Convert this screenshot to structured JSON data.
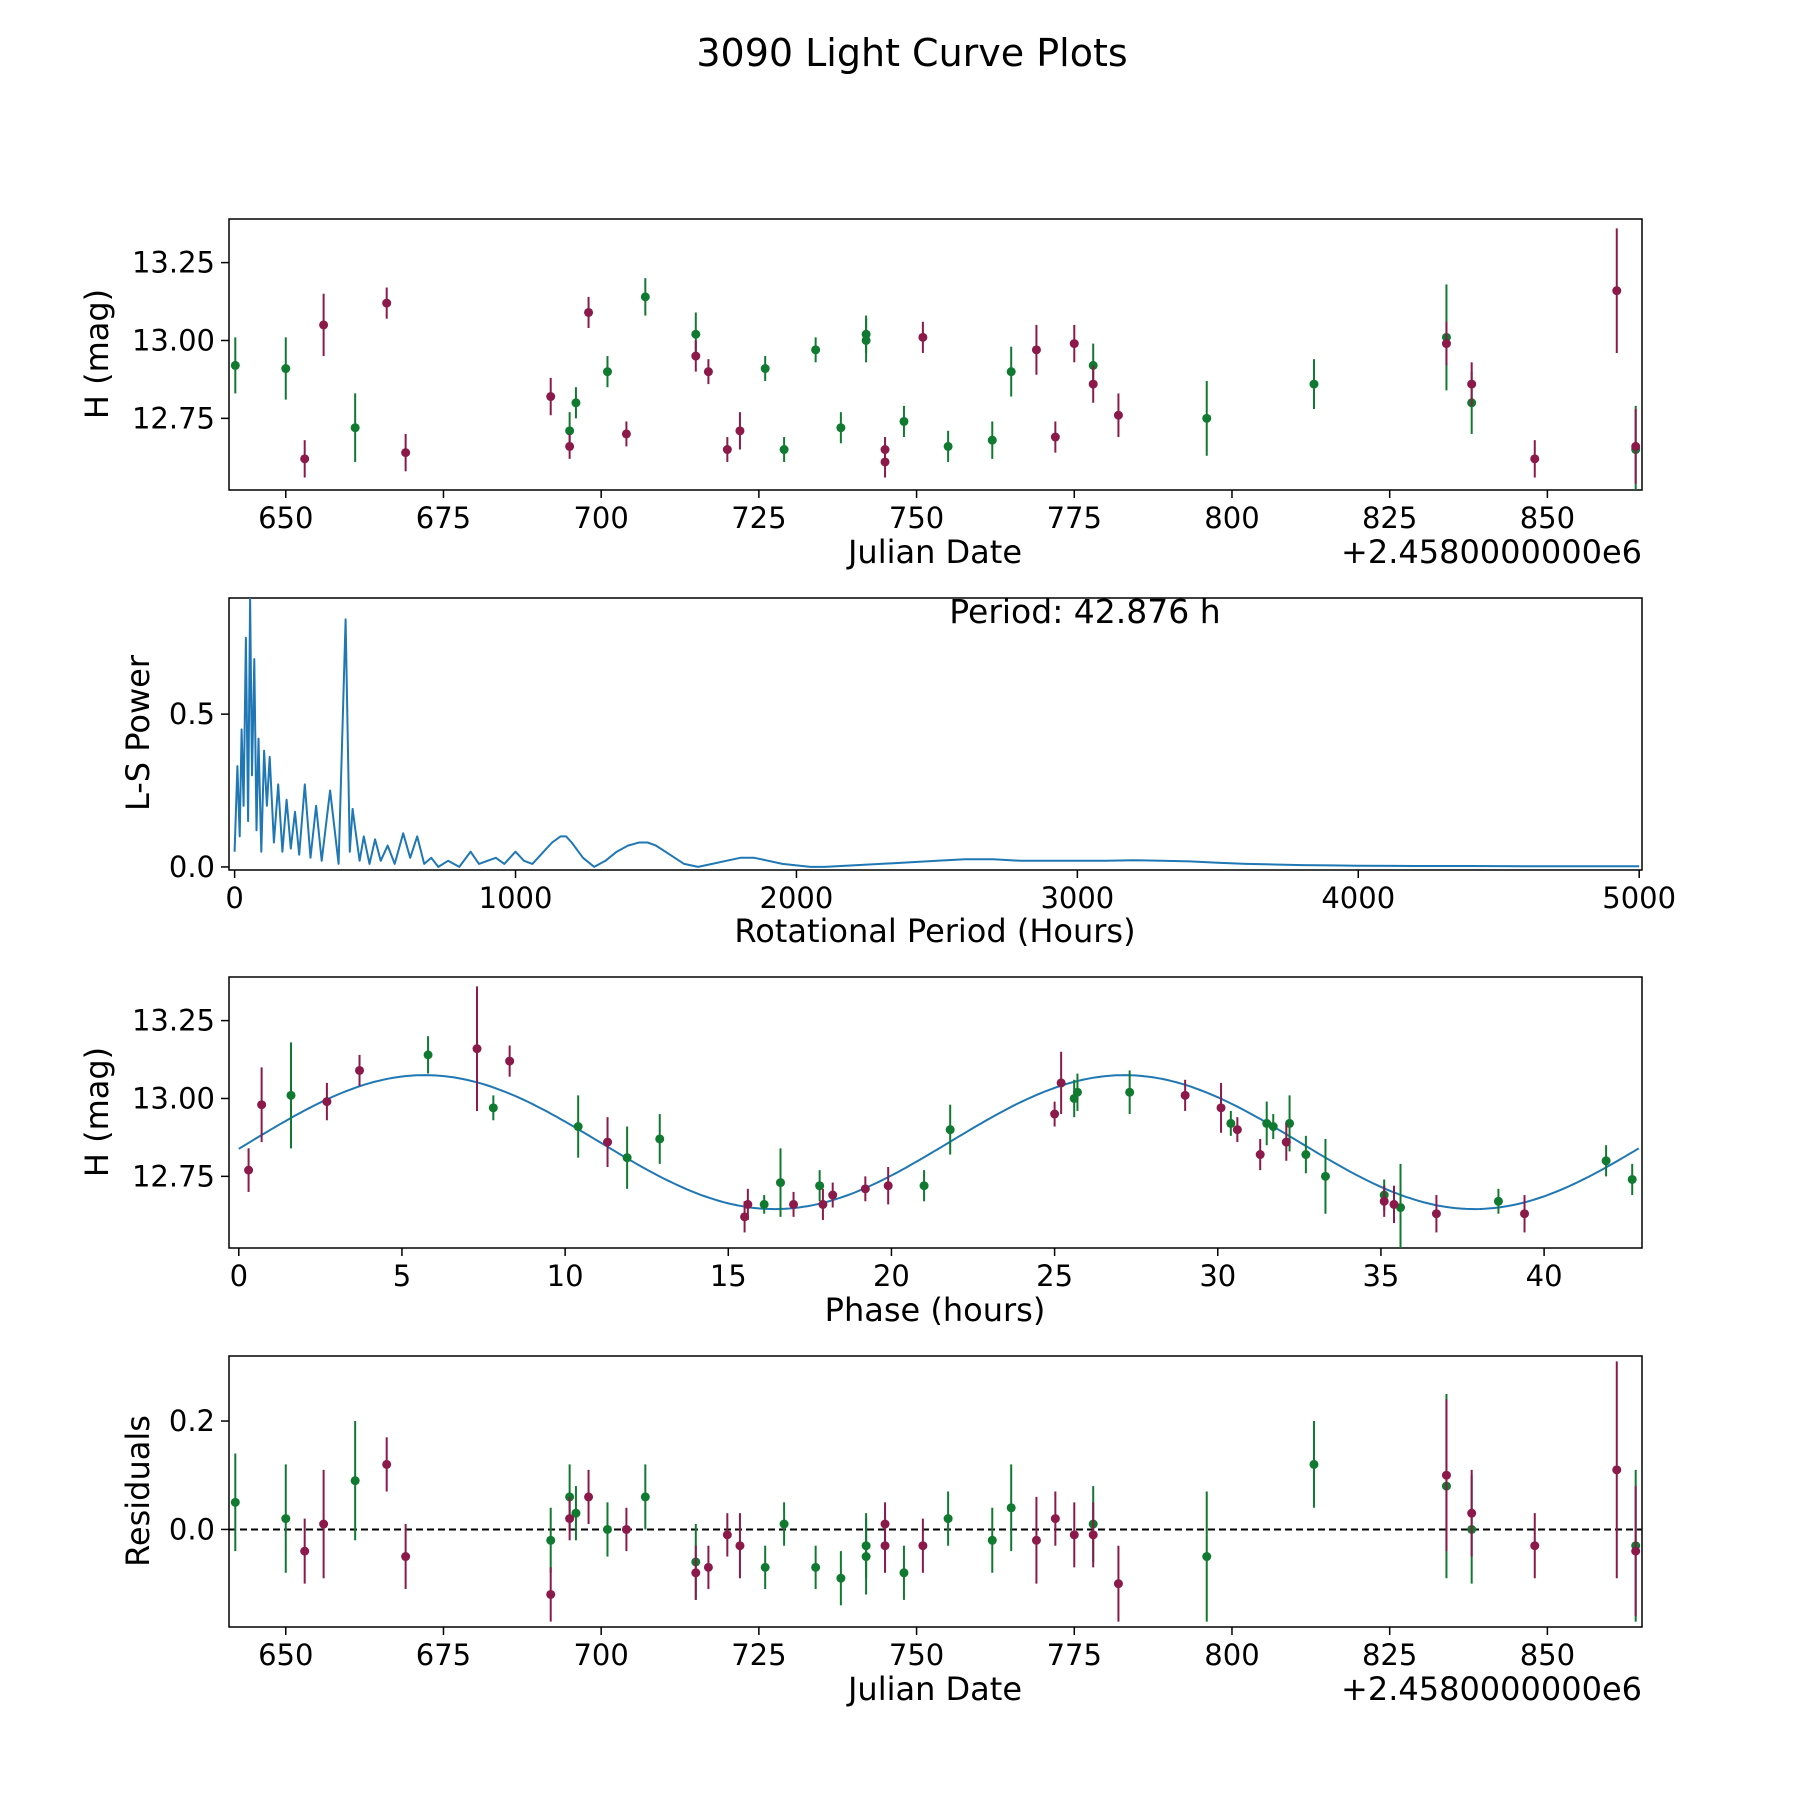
{
  "figure_title": "3090 Light Curve Plots",
  "colors": {
    "green": "#107A30",
    "magenta": "#8B1A4A",
    "line": "#1f77b4",
    "axis": "#000000"
  },
  "chart_data": [
    {
      "id": "lc",
      "type": "scatter",
      "title": "",
      "xlabel": "Julian Date",
      "ylabel": "H (mag)",
      "offset_label": "+2.4580000000e6",
      "xlim": [
        641,
        865
      ],
      "ylim": [
        12.52,
        13.39
      ],
      "xticks": [
        650,
        675,
        700,
        725,
        750,
        775,
        800,
        825,
        850
      ],
      "yticks": [
        12.75,
        13.0,
        13.25
      ],
      "ytick_labels": [
        "12.75",
        "13.00",
        "13.25"
      ],
      "series": [
        {
          "name": "green",
          "color": "green",
          "x": [
            642,
            650,
            661,
            695,
            696,
            701,
            707,
            715,
            726,
            729,
            734,
            738,
            742,
            742,
            748,
            755,
            762,
            765,
            778,
            796,
            813,
            834,
            838,
            864
          ],
          "y": [
            12.92,
            12.91,
            12.72,
            12.71,
            12.8,
            12.9,
            13.14,
            13.02,
            12.91,
            12.65,
            12.97,
            12.72,
            13.0,
            13.02,
            12.74,
            12.66,
            12.68,
            12.9,
            12.92,
            12.75,
            12.86,
            13.01,
            12.8,
            12.65
          ],
          "err": [
            0.09,
            0.1,
            0.11,
            0.06,
            0.05,
            0.05,
            0.06,
            0.07,
            0.04,
            0.04,
            0.04,
            0.05,
            0.07,
            0.06,
            0.05,
            0.05,
            0.06,
            0.08,
            0.07,
            0.12,
            0.08,
            0.17,
            0.1,
            0.14
          ]
        },
        {
          "name": "magenta",
          "color": "magenta",
          "x": [
            653,
            656,
            666,
            669,
            692,
            695,
            698,
            704,
            715,
            717,
            720,
            722,
            745,
            745,
            751,
            769,
            772,
            775,
            778,
            782,
            834,
            838,
            848,
            861,
            864
          ],
          "y": [
            12.62,
            13.05,
            13.12,
            12.64,
            12.82,
            12.66,
            13.09,
            12.7,
            12.95,
            12.9,
            12.65,
            12.71,
            12.65,
            12.61,
            13.01,
            12.97,
            12.69,
            12.99,
            12.86,
            12.76,
            12.99,
            12.86,
            12.62,
            13.16,
            12.66
          ],
          "err": [
            0.06,
            0.1,
            0.05,
            0.06,
            0.06,
            0.04,
            0.05,
            0.04,
            0.05,
            0.04,
            0.04,
            0.06,
            0.04,
            0.05,
            0.05,
            0.08,
            0.05,
            0.06,
            0.06,
            0.07,
            0.07,
            0.07,
            0.06,
            0.2,
            0.12
          ]
        }
      ]
    },
    {
      "id": "ls",
      "type": "line",
      "title": "",
      "xlabel": "Rotational Period (Hours)",
      "ylabel": "L-S Power",
      "annotation": "Period: 42.876 h",
      "xlim": [
        -20,
        5010
      ],
      "ylim": [
        -0.01,
        0.88
      ],
      "xticks": [
        0,
        1000,
        2000,
        3000,
        4000,
        5000
      ],
      "yticks": [
        0.0,
        0.5
      ],
      "ytick_labels": [
        "0.0",
        "0.5"
      ],
      "x": [
        0,
        10,
        18,
        25,
        32,
        40,
        48,
        55,
        62,
        70,
        78,
        85,
        95,
        105,
        115,
        125,
        140,
        155,
        170,
        185,
        200,
        215,
        230,
        250,
        270,
        290,
        310,
        340,
        370,
        395,
        410,
        420,
        430,
        445,
        460,
        480,
        500,
        520,
        545,
        570,
        600,
        625,
        650,
        675,
        700,
        725,
        760,
        800,
        840,
        870,
        900,
        930,
        960,
        1000,
        1030,
        1060,
        1100,
        1130,
        1160,
        1180,
        1200,
        1240,
        1280,
        1320,
        1360,
        1400,
        1440,
        1470,
        1500,
        1550,
        1600,
        1650,
        1700,
        1750,
        1800,
        1850,
        1900,
        1950,
        2000,
        2050,
        2100,
        2200,
        2300,
        2400,
        2500,
        2600,
        2700,
        2800,
        2900,
        3000,
        3100,
        3200,
        3300,
        3400,
        3500,
        3600,
        3700,
        3800,
        3900,
        4000,
        4200,
        4400,
        4600,
        4800,
        5000
      ],
      "y": [
        0.05,
        0.33,
        0.1,
        0.45,
        0.2,
        0.75,
        0.15,
        0.88,
        0.3,
        0.68,
        0.12,
        0.42,
        0.05,
        0.38,
        0.2,
        0.36,
        0.08,
        0.27,
        0.05,
        0.22,
        0.06,
        0.18,
        0.04,
        0.27,
        0.03,
        0.2,
        0.02,
        0.25,
        0.01,
        0.81,
        0.05,
        0.19,
        0.12,
        0.02,
        0.1,
        0.01,
        0.09,
        0.02,
        0.07,
        0.01,
        0.11,
        0.03,
        0.1,
        0.01,
        0.03,
        0.0,
        0.02,
        0.0,
        0.05,
        0.01,
        0.02,
        0.03,
        0.01,
        0.05,
        0.02,
        0.01,
        0.05,
        0.08,
        0.1,
        0.1,
        0.08,
        0.03,
        0.0,
        0.02,
        0.05,
        0.07,
        0.08,
        0.08,
        0.07,
        0.04,
        0.01,
        0.0,
        0.01,
        0.02,
        0.03,
        0.03,
        0.02,
        0.01,
        0.005,
        0.0,
        0.0,
        0.005,
        0.01,
        0.015,
        0.02,
        0.025,
        0.025,
        0.02,
        0.02,
        0.02,
        0.02,
        0.022,
        0.02,
        0.018,
        0.014,
        0.01,
        0.008,
        0.006,
        0.005,
        0.004,
        0.003,
        0.003,
        0.002,
        0.002,
        0.002
      ]
    },
    {
      "id": "phase",
      "type": "scatter",
      "title": "",
      "xlabel": "Phase (hours)",
      "ylabel": "H (mag)",
      "xlim": [
        -0.3,
        43.0
      ],
      "ylim": [
        12.52,
        13.39
      ],
      "xticks": [
        0,
        5,
        10,
        15,
        20,
        25,
        30,
        35,
        40
      ],
      "yticks": [
        12.75,
        13.0,
        13.25
      ],
      "ytick_labels": [
        "12.75",
        "13.00",
        "13.25"
      ],
      "fit": {
        "mean": 12.86,
        "amplitude": 0.215,
        "period": 21.44,
        "peak_phase": 5.7
      },
      "series": [
        {
          "name": "green",
          "color": "green",
          "x": [
            1.6,
            5.8,
            7.8,
            10.4,
            11.9,
            12.9,
            16.1,
            16.6,
            17.8,
            21.0,
            21.8,
            25.6,
            25.7,
            27.3,
            30.4,
            31.5,
            31.7,
            32.2,
            32.7,
            33.3,
            35.1,
            35.6,
            38.6,
            41.9,
            42.7
          ],
          "y": [
            13.01,
            13.14,
            12.97,
            12.91,
            12.81,
            12.87,
            12.66,
            12.73,
            12.72,
            12.72,
            12.9,
            13.0,
            13.02,
            13.02,
            12.92,
            12.92,
            12.91,
            12.92,
            12.82,
            12.75,
            12.69,
            12.65,
            12.67,
            12.8,
            12.74
          ],
          "err": [
            0.17,
            0.06,
            0.04,
            0.1,
            0.1,
            0.08,
            0.03,
            0.11,
            0.05,
            0.05,
            0.08,
            0.06,
            0.06,
            0.07,
            0.04,
            0.07,
            0.04,
            0.09,
            0.06,
            0.12,
            0.05,
            0.14,
            0.04,
            0.05,
            0.05
          ]
        },
        {
          "name": "magenta",
          "color": "magenta",
          "x": [
            0.3,
            0.7,
            2.7,
            3.7,
            7.3,
            8.3,
            11.3,
            15.5,
            15.6,
            17.0,
            17.9,
            18.2,
            19.2,
            19.9,
            25.0,
            25.2,
            29.0,
            30.1,
            30.6,
            31.3,
            32.1,
            35.1,
            35.4,
            36.7,
            39.4
          ],
          "y": [
            12.77,
            12.98,
            12.99,
            13.09,
            13.16,
            13.12,
            12.86,
            12.62,
            12.66,
            12.66,
            12.66,
            12.69,
            12.71,
            12.72,
            12.95,
            13.05,
            13.01,
            12.97,
            12.9,
            12.82,
            12.86,
            12.67,
            12.66,
            12.63,
            12.63
          ],
          "err": [
            0.07,
            0.12,
            0.06,
            0.05,
            0.2,
            0.05,
            0.08,
            0.05,
            0.05,
            0.04,
            0.05,
            0.04,
            0.04,
            0.06,
            0.04,
            0.1,
            0.05,
            0.08,
            0.04,
            0.05,
            0.06,
            0.05,
            0.06,
            0.06,
            0.06
          ]
        }
      ]
    },
    {
      "id": "res",
      "type": "scatter",
      "title": "",
      "xlabel": "Julian Date",
      "ylabel": "Residuals",
      "offset_label": "+2.4580000000e6",
      "xlim": [
        641,
        865
      ],
      "ylim": [
        -0.18,
        0.32
      ],
      "xticks": [
        650,
        675,
        700,
        725,
        750,
        775,
        800,
        825,
        850
      ],
      "yticks": [
        0.0,
        0.2
      ],
      "ytick_labels": [
        "0.0",
        "0.2"
      ],
      "hline": 0,
      "series": [
        {
          "name": "green",
          "color": "green",
          "x": [
            642,
            650,
            661,
            692,
            695,
            696,
            701,
            707,
            715,
            726,
            729,
            734,
            738,
            742,
            742,
            748,
            755,
            762,
            765,
            778,
            796,
            813,
            834,
            838,
            864
          ],
          "y": [
            0.05,
            0.02,
            0.09,
            -0.02,
            0.06,
            0.03,
            0.0,
            0.06,
            -0.06,
            -0.07,
            0.01,
            -0.07,
            -0.09,
            -0.03,
            -0.05,
            -0.08,
            0.02,
            -0.02,
            0.04,
            0.01,
            -0.05,
            0.12,
            0.08,
            0.0,
            -0.03
          ],
          "err": [
            0.09,
            0.1,
            0.11,
            0.06,
            0.06,
            0.05,
            0.05,
            0.06,
            0.07,
            0.04,
            0.04,
            0.04,
            0.05,
            0.06,
            0.07,
            0.05,
            0.05,
            0.06,
            0.08,
            0.07,
            0.12,
            0.08,
            0.17,
            0.1,
            0.14
          ]
        },
        {
          "name": "magenta",
          "color": "magenta",
          "x": [
            653,
            656,
            666,
            669,
            692,
            695,
            698,
            704,
            715,
            717,
            720,
            722,
            745,
            745,
            751,
            769,
            772,
            775,
            778,
            782,
            834,
            838,
            848,
            861,
            864
          ],
          "y": [
            -0.04,
            0.01,
            0.12,
            -0.05,
            -0.12,
            0.02,
            0.06,
            0.0,
            -0.08,
            -0.07,
            -0.01,
            -0.03,
            0.01,
            -0.03,
            -0.03,
            -0.02,
            0.02,
            -0.01,
            -0.01,
            -0.1,
            0.1,
            0.03,
            -0.03,
            0.11,
            -0.04
          ],
          "err": [
            0.06,
            0.1,
            0.05,
            0.06,
            0.05,
            0.04,
            0.05,
            0.04,
            0.05,
            0.04,
            0.04,
            0.06,
            0.04,
            0.05,
            0.05,
            0.08,
            0.05,
            0.06,
            0.06,
            0.07,
            0.14,
            0.08,
            0.06,
            0.2,
            0.12
          ]
        }
      ]
    }
  ]
}
